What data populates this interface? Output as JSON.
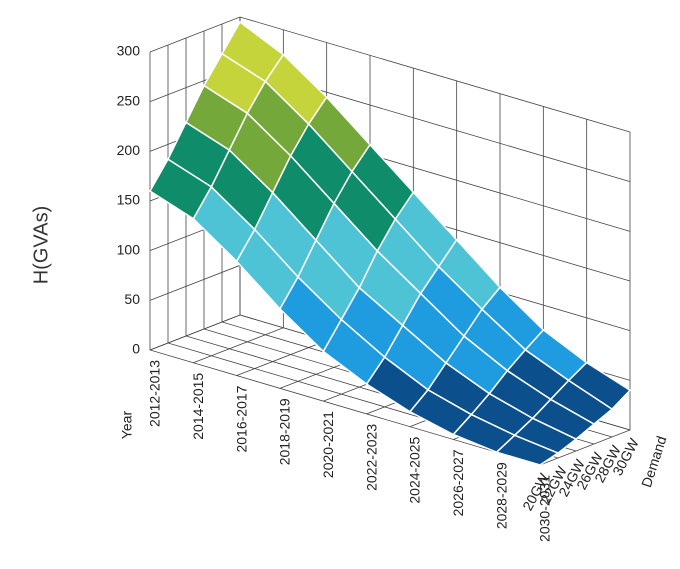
{
  "chart_data": {
    "type": "surface",
    "z_label": "H(GVAs)",
    "x_label": "Year",
    "y_label": "Demand",
    "x_categories": [
      "2012-2013",
      "2014-2015",
      "2016-2017",
      "2018-2019",
      "2020-2021",
      "2022-2023",
      "2024-2025",
      "2026-2027",
      "2028-2029",
      "2030-2031"
    ],
    "y_categories": [
      "20GW",
      "22GW",
      "24GW",
      "26GW",
      "28GW",
      "30GW"
    ],
    "zlim": [
      0,
      300
    ],
    "zticks": [
      0,
      50,
      100,
      150,
      200,
      250,
      300
    ],
    "band_colors": [
      "#0b4f8c",
      "#1f9ce0",
      "#4fc3d6",
      "#0f8c6a",
      "#74a83a",
      "#c6d43c"
    ],
    "z": [
      [
        160,
        185,
        215,
        245,
        270,
        295
      ],
      [
        145,
        170,
        200,
        230,
        255,
        275
      ],
      [
        115,
        140,
        170,
        200,
        225,
        245
      ],
      [
        80,
        105,
        135,
        165,
        190,
        210
      ],
      [
        50,
        75,
        100,
        130,
        155,
        175
      ],
      [
        30,
        50,
        75,
        100,
        120,
        140
      ],
      [
        15,
        30,
        50,
        70,
        90,
        105
      ],
      [
        5,
        18,
        32,
        48,
        62,
        75
      ],
      [
        0,
        10,
        20,
        32,
        44,
        55
      ],
      [
        0,
        5,
        12,
        20,
        28,
        40
      ]
    ]
  }
}
